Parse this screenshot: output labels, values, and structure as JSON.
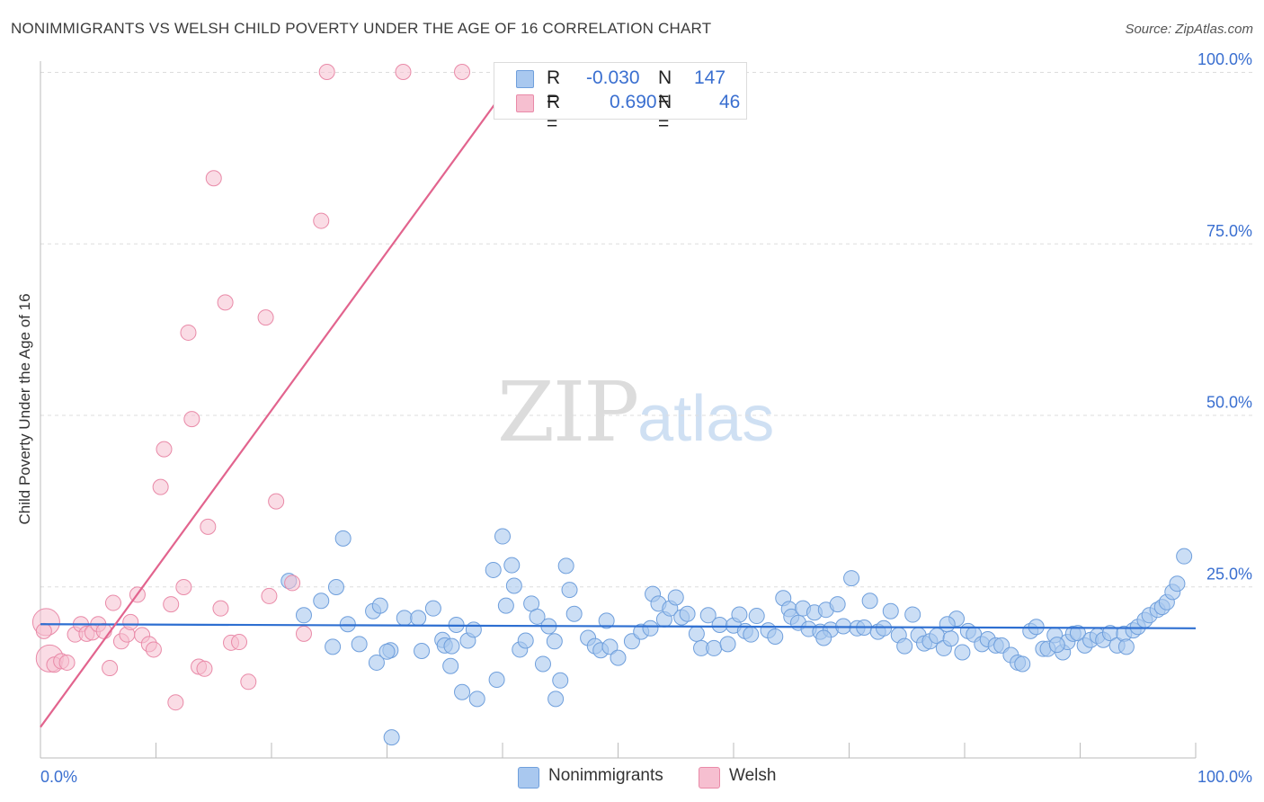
{
  "title": "NONIMMIGRANTS VS WELSH CHILD POVERTY UNDER THE AGE OF 16 CORRELATION CHART",
  "source": "Source: ZipAtlas.com",
  "watermark": {
    "zip": "ZIP",
    "atlas": "atlas"
  },
  "colors": {
    "blue_fill": "#a9c8ef",
    "blue_stroke": "#6f9fdc",
    "blue_line": "#2e6fd1",
    "pink_fill": "#f6bfd0",
    "pink_stroke": "#e98aa8",
    "pink_line": "#e2648e",
    "axis_text": "#3a6fd0",
    "grid": "#dddddd"
  },
  "legend": {
    "rows": [
      {
        "r_label": "R =",
        "r_value": "-0.030",
        "n_label": "N =",
        "n_value": "147"
      },
      {
        "r_label": "R =",
        "r_value": "0.690",
        "n_label": "N =",
        "n_value": "46"
      }
    ]
  },
  "bottom_legend": {
    "series1": "Nonimmigrants",
    "series2": "Welsh"
  },
  "chart_data": {
    "type": "scatter",
    "title": "NONIMMIGRANTS VS WELSH CHILD POVERTY UNDER THE AGE OF 16 CORRELATION CHART",
    "xlabel": "",
    "ylabel": "Child Poverty Under the Age of 16",
    "xlim": [
      0,
      100
    ],
    "ylim": [
      0,
      100
    ],
    "x_ticks": [
      "0.0%",
      "100.0%"
    ],
    "y_ticks": [
      "25.0%",
      "50.0%",
      "75.0%",
      "100.0%"
    ],
    "grid": true,
    "legend_position": "top-center",
    "series": [
      {
        "name": "Nonimmigrants",
        "r": -0.03,
        "n": 147,
        "trend": {
          "x": [
            0,
            100
          ],
          "y": [
            19.5,
            18.9
          ]
        },
        "points": [
          [
            21.5,
            25.8
          ],
          [
            22.8,
            20.8
          ],
          [
            25.6,
            24.9
          ],
          [
            24.3,
            22.9
          ],
          [
            26.2,
            32.0
          ],
          [
            25.3,
            16.2
          ],
          [
            26.6,
            19.5
          ],
          [
            27.6,
            16.6
          ],
          [
            28.8,
            21.4
          ],
          [
            29.4,
            22.2
          ],
          [
            29.1,
            13.9
          ],
          [
            30.3,
            15.7
          ],
          [
            30.4,
            3.0
          ],
          [
            31.5,
            20.4
          ],
          [
            32.7,
            20.4
          ],
          [
            33.0,
            15.6
          ],
          [
            34.0,
            21.8
          ],
          [
            34.8,
            17.2
          ],
          [
            35.0,
            16.4
          ],
          [
            35.6,
            16.3
          ],
          [
            35.5,
            13.4
          ],
          [
            36.0,
            19.4
          ],
          [
            36.5,
            9.6
          ],
          [
            37.0,
            17.1
          ],
          [
            37.5,
            18.7
          ],
          [
            37.8,
            8.6
          ],
          [
            39.2,
            27.4
          ],
          [
            39.5,
            11.4
          ],
          [
            40.0,
            32.3
          ],
          [
            40.3,
            22.2
          ],
          [
            40.8,
            28.1
          ],
          [
            41.0,
            25.1
          ],
          [
            41.5,
            15.8
          ],
          [
            42.0,
            17.1
          ],
          [
            42.5,
            22.5
          ],
          [
            43.0,
            20.6
          ],
          [
            43.5,
            13.7
          ],
          [
            44.0,
            19.2
          ],
          [
            44.6,
            8.6
          ],
          [
            45.0,
            11.3
          ],
          [
            45.5,
            28.0
          ],
          [
            45.8,
            24.5
          ],
          [
            46.2,
            21.0
          ],
          [
            47.4,
            17.5
          ],
          [
            48.0,
            16.3
          ],
          [
            48.5,
            15.7
          ],
          [
            49.0,
            20.0
          ],
          [
            49.3,
            16.2
          ],
          [
            50.0,
            14.6
          ],
          [
            51.2,
            17.0
          ],
          [
            52.0,
            18.4
          ],
          [
            52.8,
            18.9
          ],
          [
            53.0,
            23.9
          ],
          [
            53.5,
            22.5
          ],
          [
            54.0,
            20.2
          ],
          [
            54.5,
            21.8
          ],
          [
            55.0,
            23.4
          ],
          [
            55.5,
            20.5
          ],
          [
            56.0,
            21.0
          ],
          [
            56.8,
            18.1
          ],
          [
            57.2,
            16.0
          ],
          [
            57.8,
            20.8
          ],
          [
            58.3,
            16.0
          ],
          [
            58.8,
            19.4
          ],
          [
            59.5,
            16.6
          ],
          [
            60.0,
            19.3
          ],
          [
            60.5,
            20.9
          ],
          [
            61.0,
            18.5
          ],
          [
            61.5,
            18.0
          ],
          [
            62.0,
            20.7
          ],
          [
            63.0,
            18.6
          ],
          [
            63.6,
            17.7
          ],
          [
            64.3,
            23.3
          ],
          [
            64.8,
            21.7
          ],
          [
            65.0,
            20.6
          ],
          [
            65.6,
            19.7
          ],
          [
            66.0,
            21.8
          ],
          [
            66.5,
            18.8
          ],
          [
            67.0,
            21.2
          ],
          [
            67.5,
            18.4
          ],
          [
            68.0,
            21.6
          ],
          [
            68.4,
            18.7
          ],
          [
            69.0,
            22.4
          ],
          [
            69.5,
            19.2
          ],
          [
            70.2,
            26.2
          ],
          [
            70.7,
            18.9
          ],
          [
            71.3,
            19.0
          ],
          [
            71.8,
            22.9
          ],
          [
            72.5,
            18.4
          ],
          [
            73.0,
            18.9
          ],
          [
            73.6,
            21.4
          ],
          [
            74.3,
            17.9
          ],
          [
            74.8,
            16.3
          ],
          [
            75.5,
            20.9
          ],
          [
            76.0,
            17.9
          ],
          [
            76.5,
            16.7
          ],
          [
            77.0,
            17.0
          ],
          [
            77.6,
            17.8
          ],
          [
            78.2,
            16.0
          ],
          [
            78.8,
            17.4
          ],
          [
            79.3,
            20.3
          ],
          [
            79.8,
            15.4
          ],
          [
            80.3,
            18.5
          ],
          [
            80.8,
            18.0
          ],
          [
            81.5,
            16.6
          ],
          [
            82.0,
            17.3
          ],
          [
            82.7,
            16.4
          ],
          [
            83.2,
            16.4
          ],
          [
            84.0,
            15.0
          ],
          [
            84.6,
            13.9
          ],
          [
            85.0,
            13.7
          ],
          [
            85.7,
            18.5
          ],
          [
            86.2,
            19.1
          ],
          [
            86.8,
            15.9
          ],
          [
            87.2,
            15.9
          ],
          [
            87.8,
            17.9
          ],
          [
            88.5,
            15.4
          ],
          [
            88.9,
            16.9
          ],
          [
            89.4,
            18.1
          ],
          [
            89.8,
            18.2
          ],
          [
            90.4,
            16.4
          ],
          [
            90.9,
            17.2
          ],
          [
            91.5,
            17.8
          ],
          [
            92.0,
            17.2
          ],
          [
            92.6,
            18.2
          ],
          [
            93.2,
            16.4
          ],
          [
            93.8,
            18.1
          ],
          [
            94.0,
            16.2
          ],
          [
            94.6,
            18.6
          ],
          [
            95.0,
            19.1
          ],
          [
            95.6,
            20.1
          ],
          [
            96.0,
            20.8
          ],
          [
            96.7,
            21.6
          ],
          [
            97.1,
            22.0
          ],
          [
            97.5,
            22.7
          ],
          [
            98.0,
            24.2
          ],
          [
            98.4,
            25.4
          ],
          [
            99.0,
            29.4
          ],
          [
            30.0,
            15.5
          ],
          [
            44.5,
            17.0
          ],
          [
            67.8,
            17.5
          ],
          [
            78.5,
            19.5
          ],
          [
            88.0,
            16.5
          ]
        ]
      },
      {
        "name": "Welsh",
        "r": 0.69,
        "n": 46,
        "trend": {
          "x": [
            0,
            40.5
          ],
          "y": [
            4.5,
            98.0
          ]
        },
        "points": [
          [
            0.5,
            19.8
          ],
          [
            0.8,
            14.5
          ],
          [
            1.2,
            13.6
          ],
          [
            1.8,
            14.1
          ],
          [
            2.3,
            13.9
          ],
          [
            3.0,
            18.0
          ],
          [
            3.5,
            19.5
          ],
          [
            4.0,
            18.1
          ],
          [
            4.5,
            18.3
          ],
          [
            5.0,
            19.5
          ],
          [
            5.5,
            18.5
          ],
          [
            6.0,
            13.1
          ],
          [
            6.3,
            22.6
          ],
          [
            7.0,
            17.0
          ],
          [
            7.5,
            18.0
          ],
          [
            7.8,
            19.8
          ],
          [
            8.4,
            23.8
          ],
          [
            8.8,
            17.9
          ],
          [
            9.4,
            16.6
          ],
          [
            9.8,
            15.8
          ],
          [
            10.4,
            39.5
          ],
          [
            10.7,
            45.0
          ],
          [
            11.3,
            22.4
          ],
          [
            11.7,
            8.1
          ],
          [
            12.4,
            24.9
          ],
          [
            12.8,
            62.0
          ],
          [
            13.1,
            49.4
          ],
          [
            13.7,
            13.3
          ],
          [
            14.2,
            13.0
          ],
          [
            14.5,
            33.7
          ],
          [
            15.0,
            84.5
          ],
          [
            15.6,
            21.8
          ],
          [
            16.0,
            66.4
          ],
          [
            16.5,
            16.8
          ],
          [
            17.2,
            16.9
          ],
          [
            18.0,
            11.1
          ],
          [
            19.5,
            64.2
          ],
          [
            19.8,
            23.6
          ],
          [
            20.4,
            37.4
          ],
          [
            21.8,
            25.5
          ],
          [
            22.8,
            18.1
          ],
          [
            24.3,
            78.3
          ],
          [
            24.8,
            100.0
          ],
          [
            31.4,
            100.0
          ],
          [
            36.5,
            100.0
          ],
          [
            0.3,
            18.5
          ]
        ]
      }
    ]
  }
}
